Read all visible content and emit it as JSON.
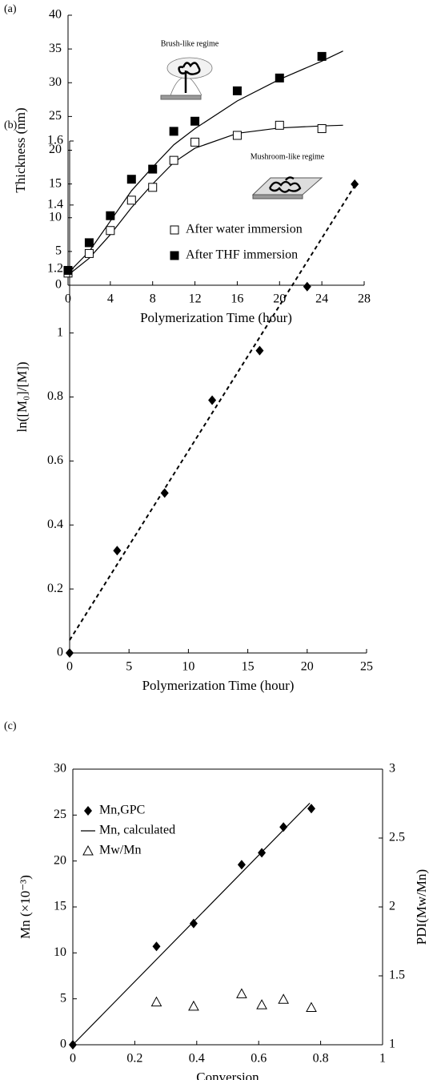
{
  "chart_data": [
    {
      "type": "scatter",
      "panel": "(a)",
      "xlabel": "Polymerization Time (hour)",
      "ylabel": "Thickness (nm)",
      "xlim": [
        0,
        28
      ],
      "xticks": [
        0,
        4,
        8,
        12,
        16,
        20,
        24,
        28
      ],
      "ylim": [
        0,
        40
      ],
      "yticks": [
        0,
        5,
        10,
        15,
        20,
        25,
        30,
        35,
        40
      ],
      "legend": "lower right",
      "frame": false,
      "series": [
        {
          "name": "After water immersion",
          "marker": "square-open",
          "color": "#000000",
          "x": [
            0,
            2,
            4,
            6,
            8,
            10,
            12,
            16,
            20,
            24
          ],
          "values": [
            1.8,
            4.7,
            8.1,
            12.6,
            14.5,
            18.5,
            21.2,
            22.2,
            23.7,
            23.2
          ]
        },
        {
          "name": "After THF immersion",
          "marker": "square",
          "color": "#000000",
          "x": [
            0,
            2,
            4,
            6,
            8,
            10,
            12,
            16,
            20,
            24
          ],
          "values": [
            2.2,
            6.3,
            10.3,
            15.7,
            17.2,
            22.8,
            24.3,
            28.8,
            30.7,
            33.9
          ]
        }
      ],
      "curves": [
        {
          "style": "solid",
          "color": "#000000",
          "x": [
            0,
            2,
            4,
            6,
            8,
            10,
            12,
            16,
            20,
            24,
            26
          ],
          "values": [
            1.5,
            4,
            7.5,
            11.5,
            15,
            18.2,
            20.3,
            22.5,
            23.3,
            23.6,
            23.7
          ]
        },
        {
          "style": "solid",
          "color": "#000000",
          "x": [
            0,
            2,
            4,
            6,
            8,
            10,
            12,
            16,
            20,
            24,
            26
          ],
          "values": [
            1.8,
            5,
            9.5,
            14,
            17.5,
            20.8,
            23.2,
            27.3,
            30.5,
            33.2,
            34.7
          ]
        }
      ],
      "annotations": [
        "Brush-like regime",
        "Mushroom-like regime"
      ]
    },
    {
      "type": "scatter",
      "panel": "(b)",
      "xlabel": "Polymerization Time (hour)",
      "ylabel": "ln([M₀]/[M])",
      "xlim": [
        0,
        25
      ],
      "xticks": [
        0,
        5,
        10,
        15,
        20,
        25
      ],
      "ylim": [
        0,
        1.6
      ],
      "yticks": [
        0,
        0.2,
        0.4,
        0.6,
        0.8,
        1,
        1.2,
        1.4,
        1.6
      ],
      "frame": false,
      "series": [
        {
          "marker": "diamond",
          "color": "#000000",
          "x": [
            0,
            4,
            8,
            12,
            16,
            20,
            24
          ],
          "values": [
            0,
            0.32,
            0.5,
            0.79,
            0.945,
            1.145,
            1.465
          ]
        }
      ],
      "curves": [
        {
          "style": "dashed",
          "color": "#000000",
          "x": [
            0,
            24
          ],
          "values": [
            0.04,
            1.46
          ]
        }
      ]
    },
    {
      "type": "scatter",
      "panel": "(c)",
      "xlabel": "Conversion",
      "ylabel": "Mn (×10⁻³)",
      "y2label": "PDI(Mw/Mn)",
      "xlim": [
        0,
        1
      ],
      "xticks": [
        0,
        0.2,
        0.4,
        0.6,
        0.8,
        1
      ],
      "ylim": [
        0,
        30
      ],
      "yticks": [
        0,
        5,
        10,
        15,
        20,
        25,
        30
      ],
      "y2lim": [
        1,
        3
      ],
      "y2ticks": [
        1,
        1.5,
        2,
        2.5,
        3
      ],
      "legend": "upper left",
      "frame": true,
      "series": [
        {
          "name": "Mn,GPC",
          "marker": "diamond",
          "color": "#000000",
          "x": [
            0,
            0.27,
            0.39,
            0.545,
            0.61,
            0.68,
            0.77
          ],
          "values": [
            0,
            10.7,
            13.2,
            19.6,
            20.9,
            23.7,
            25.7
          ]
        },
        {
          "name": "Mn, calculated",
          "marker": "line",
          "color": "#000000",
          "x": [
            0,
            0.765
          ],
          "values": [
            0,
            26.3
          ]
        },
        {
          "name": "Mw/Mn",
          "marker": "triangle-open",
          "color": "#000000",
          "axis": "y2",
          "x": [
            0.27,
            0.39,
            0.545,
            0.61,
            0.68,
            0.77
          ],
          "values": [
            1.31,
            1.28,
            1.37,
            1.29,
            1.33,
            1.27
          ]
        }
      ]
    }
  ]
}
